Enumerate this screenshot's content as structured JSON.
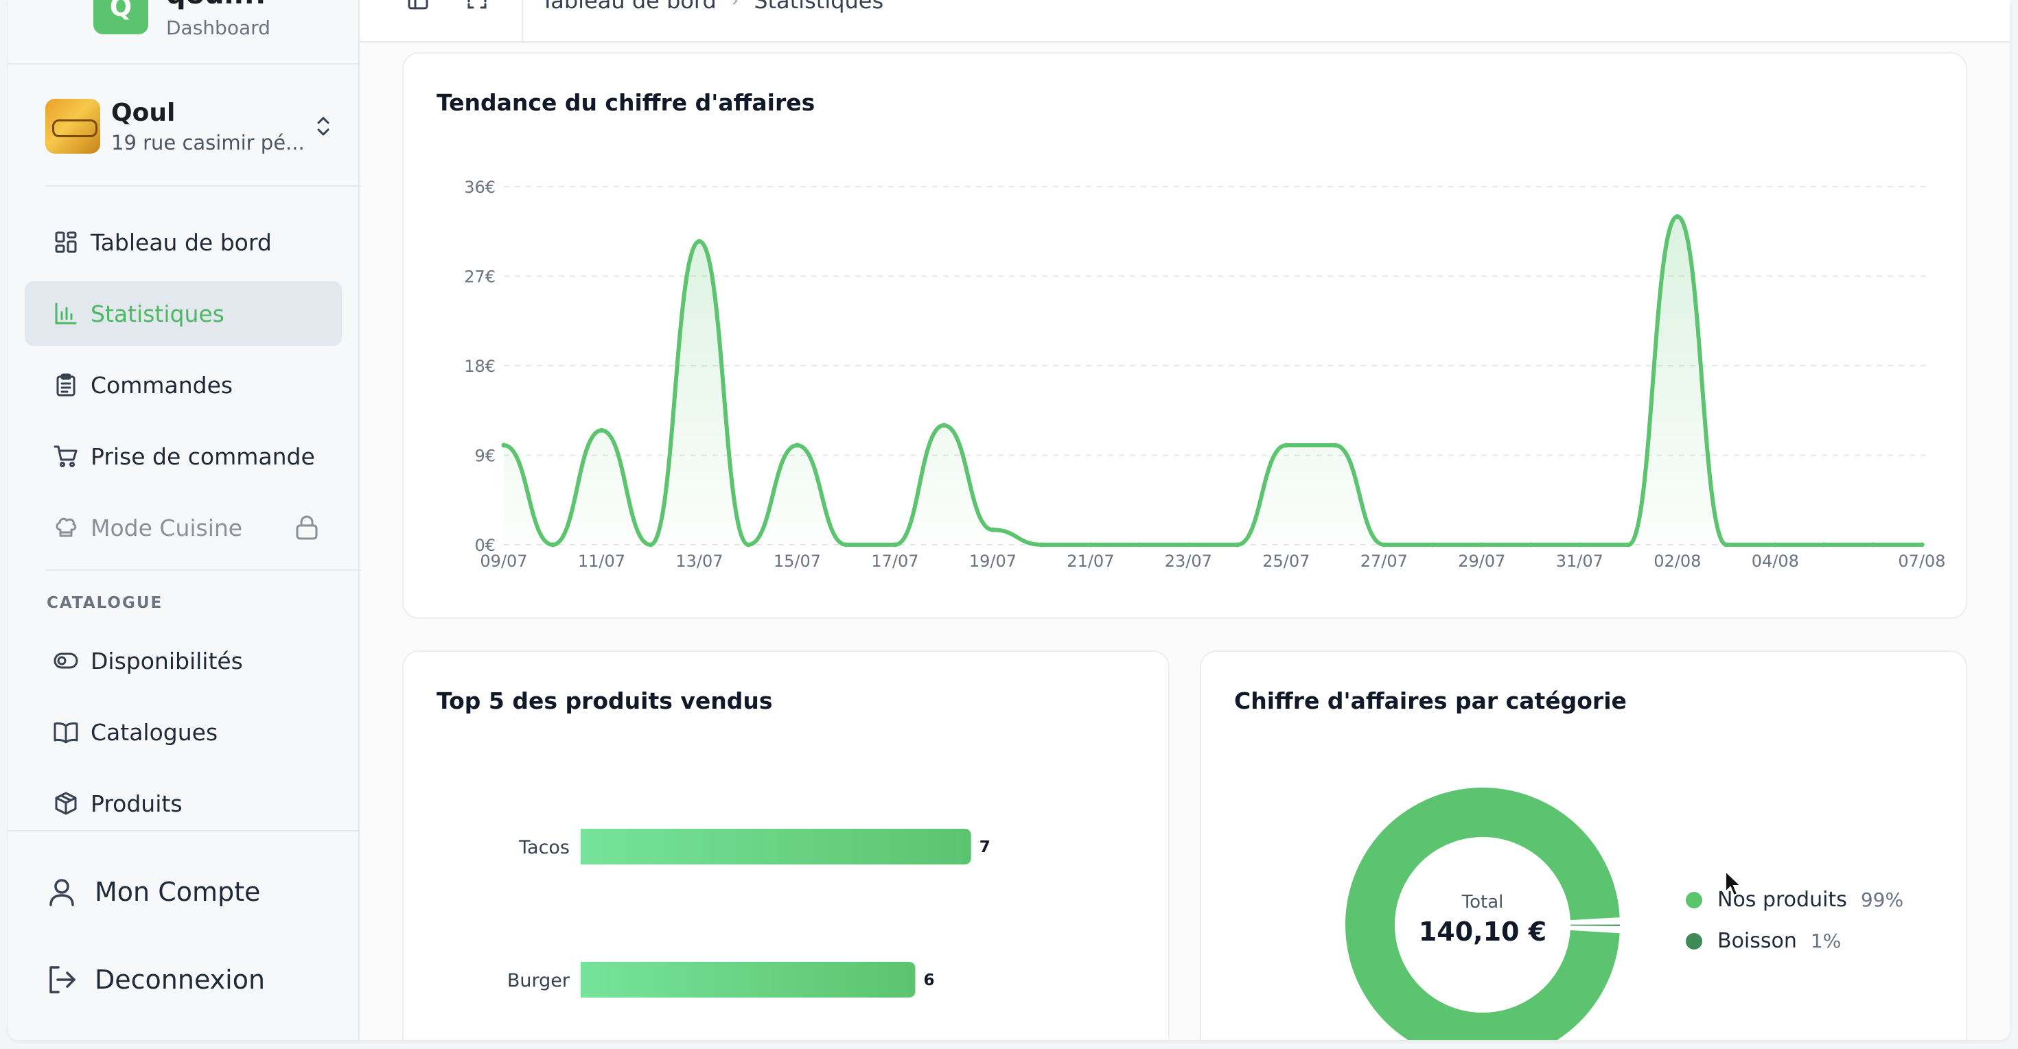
{
  "brand": {
    "name": "qoul.fr",
    "subtitle": "Dashboard",
    "logo_letter": "Q",
    "color": "#5cc46f"
  },
  "store": {
    "name": "Qoul",
    "address": "19 rue casimir pé..."
  },
  "sidebar": {
    "items": [
      {
        "label": "Tableau de bord",
        "icon": "dashboard-grid-icon"
      },
      {
        "label": "Statistiques",
        "icon": "bar-chart-icon",
        "active": true
      },
      {
        "label": "Commandes",
        "icon": "clipboard-icon"
      },
      {
        "label": "Prise de commande",
        "icon": "cart-icon"
      },
      {
        "label": "Mode Cuisine",
        "icon": "chef-hat-icon",
        "locked": true
      }
    ],
    "catalogue_label": "CATALOGUE",
    "catalogue_items": [
      {
        "label": "Disponibilités",
        "icon": "toggle-icon"
      },
      {
        "label": "Catalogues",
        "icon": "book-icon"
      },
      {
        "label": "Produits",
        "icon": "package-icon"
      }
    ],
    "account_label": "Mon Compte",
    "logout_label": "Deconnexion"
  },
  "topbar": {
    "breadcrumb": [
      "Tableau de bord",
      "Statistiques"
    ]
  },
  "accent_color": "#5cc46f",
  "chart_data": [
    {
      "type": "line",
      "title": "Tendance du chiffre d'affaires",
      "x": [
        "09/07",
        "10/07",
        "11/07",
        "12/07",
        "13/07",
        "14/07",
        "15/07",
        "16/07",
        "17/07",
        "18/07",
        "19/07",
        "20/07",
        "21/07",
        "22/07",
        "23/07",
        "24/07",
        "25/07",
        "26/07",
        "27/07",
        "28/07",
        "29/07",
        "30/07",
        "31/07",
        "01/08",
        "02/08",
        "03/08",
        "04/08",
        "05/08",
        "06/08",
        "07/08"
      ],
      "x_tick_labels": [
        "09/07",
        "11/07",
        "13/07",
        "15/07",
        "17/07",
        "19/07",
        "21/07",
        "23/07",
        "25/07",
        "27/07",
        "29/07",
        "31/07",
        "02/08",
        "04/08",
        "07/08"
      ],
      "values": [
        10,
        0,
        11.5,
        0,
        30.5,
        0,
        10,
        0,
        0,
        12,
        1.5,
        0,
        0,
        0,
        0,
        0,
        10,
        10,
        0,
        0,
        0,
        0,
        0,
        0,
        33,
        0,
        0,
        0,
        0,
        0
      ],
      "y_ticks": [
        "0€",
        "9€",
        "18€",
        "27€",
        "36€"
      ],
      "ylim": [
        0,
        36
      ],
      "grid": true,
      "color": "#5cc46f"
    },
    {
      "type": "bar",
      "orientation": "horizontal",
      "title": "Top 5 des produits vendus",
      "categories": [
        "Tacos",
        "Burger"
      ],
      "values": [
        7,
        6
      ],
      "xlim": [
        0,
        8
      ],
      "color": "#6fd98c"
    },
    {
      "type": "pie",
      "donut": true,
      "title": "Chiffre d'affaires par catégorie",
      "center_label": "Total",
      "center_value": "140,10 €",
      "categories": [
        "Nos produits",
        "Boisson"
      ],
      "values": [
        99,
        1
      ],
      "labels": [
        "99%",
        "1%"
      ],
      "colors": [
        "#5cc46f",
        "#3f8a57"
      ]
    }
  ]
}
